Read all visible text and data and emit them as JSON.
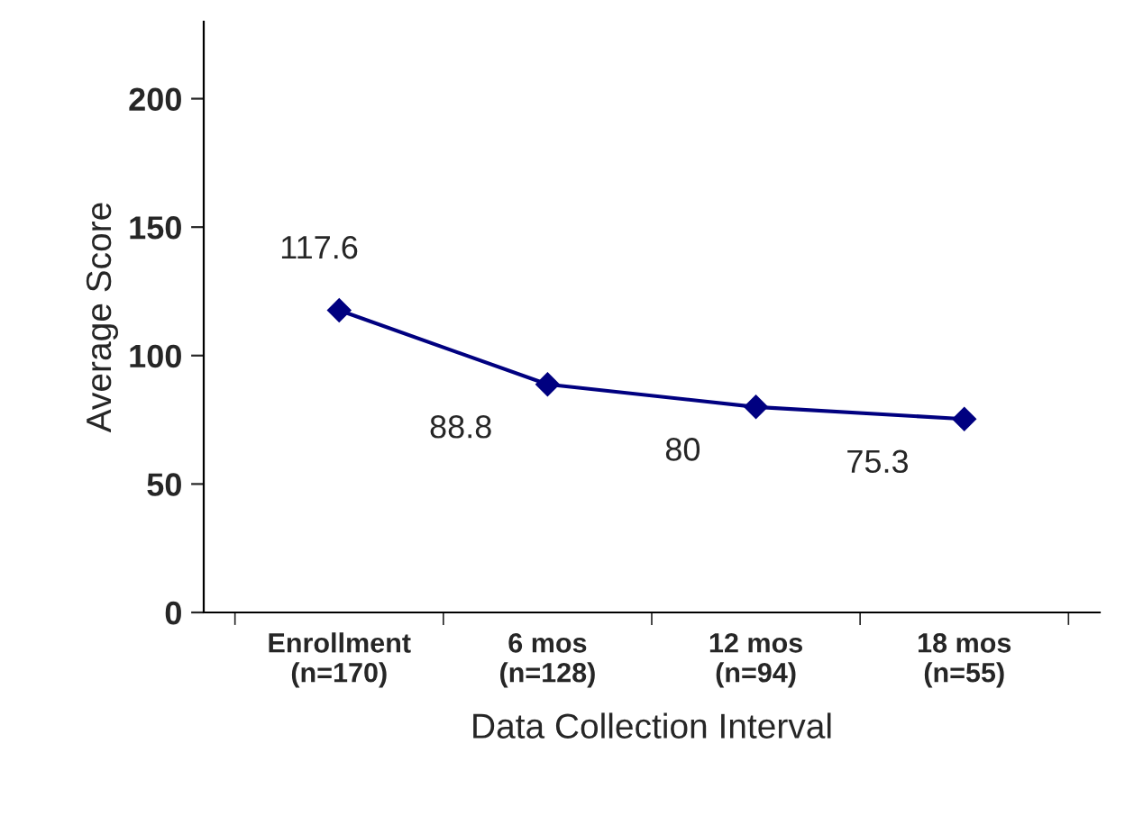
{
  "chart_data": {
    "type": "line",
    "xlabel": "Data Collection Interval",
    "ylabel": "Average Score",
    "categories": [
      "Enrollment\n(n=170)",
      "6 mos\n(n=128)",
      "12 mos\n(n=94)",
      "18 mos\n(n=55)"
    ],
    "series": [
      {
        "color": "#000080",
        "values": [
          117.6,
          88.8,
          80,
          75.3
        ]
      }
    ],
    "ylim": [
      0,
      230
    ],
    "yticks": [
      0,
      50,
      100,
      150,
      200
    ],
    "marker": "diamond",
    "line_style": "solid",
    "data_labels": true,
    "grid": false,
    "legend": false
  }
}
